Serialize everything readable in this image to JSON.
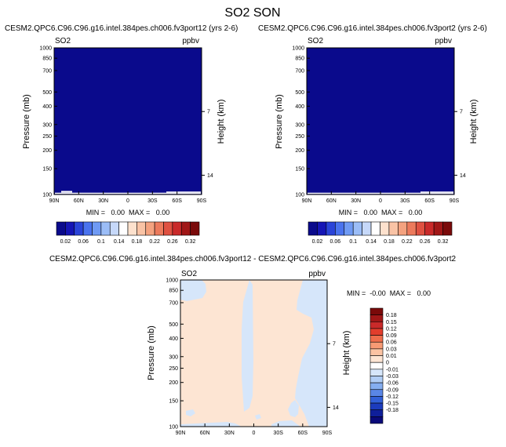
{
  "page_title": "SO2 SON",
  "chart_data": [
    {
      "type": "heatmap",
      "title": "CESM2.QPC6.C96.C96.g16.intel.384pes.ch006.fv3port12 (yrs 2-6)",
      "variable": "SO2",
      "units": "ppbv",
      "xlabel": "",
      "ylabel": "Pressure (mb)",
      "y2label": "Height (km)",
      "x_ticks": [
        "90N",
        "60N",
        "30N",
        "0",
        "30S",
        "60S",
        "90S"
      ],
      "y_ticks": [
        100,
        150,
        200,
        250,
        300,
        400,
        500,
        700,
        850,
        1000
      ],
      "y2_ticks": [
        14,
        7
      ],
      "y_scale": "log",
      "ylim": [
        1000,
        100
      ],
      "stats": "MIN =   0.00  MAX =   0.00",
      "field": "uniform lowest contour level everywhere (all 0.00)",
      "fill_color": "#0a0a8c",
      "colorbar_labels": [
        "0.02",
        "0.06",
        "0.1",
        "0.14",
        "0.18",
        "0.22",
        "0.26",
        "0.32"
      ],
      "colorbar_colors": [
        "#0a0a8c",
        "#1515b5",
        "#2a44d8",
        "#4a73ee",
        "#6f9af4",
        "#9bbdf7",
        "#c6d8f9",
        "#ffffff",
        "#fde1cd",
        "#f9c3a5",
        "#f4a27f",
        "#ec7a5c",
        "#df5141",
        "#c92a2a",
        "#a11717",
        "#7a0a0a"
      ]
    },
    {
      "type": "heatmap",
      "title": "CESM2.QPC6.C96.C96.g16.intel.384pes.ch006.fv3port2 (yrs 2-6)",
      "variable": "SO2",
      "units": "ppbv",
      "xlabel": "",
      "ylabel": "Pressure (mb)",
      "y2label": "Height (km)",
      "x_ticks": [
        "90N",
        "60N",
        "30N",
        "0",
        "30S",
        "60S",
        "90S"
      ],
      "y_ticks": [
        100,
        150,
        200,
        250,
        300,
        400,
        500,
        700,
        850,
        1000
      ],
      "y2_ticks": [
        14,
        7
      ],
      "y_scale": "log",
      "ylim": [
        1000,
        100
      ],
      "stats": "MIN =   0.00  MAX =   0.00",
      "field": "uniform lowest contour level everywhere (all 0.00)",
      "fill_color": "#0a0a8c",
      "colorbar_labels": [
        "0.02",
        "0.06",
        "0.1",
        "0.14",
        "0.18",
        "0.22",
        "0.26",
        "0.32"
      ],
      "colorbar_colors": [
        "#0a0a8c",
        "#1515b5",
        "#2a44d8",
        "#4a73ee",
        "#6f9af4",
        "#9bbdf7",
        "#c6d8f9",
        "#ffffff",
        "#fde1cd",
        "#f9c3a5",
        "#f4a27f",
        "#ec7a5c",
        "#df5141",
        "#c92a2a",
        "#a11717",
        "#7a0a0a"
      ]
    },
    {
      "type": "heatmap",
      "title": "CESM2.QPC6.C96.C96.g16.intel.384pes.ch006.fv3port12 - CESM2.QPC6.C96.C96.g16.intel.384pes.ch006.fv3port2",
      "variable": "SO2",
      "units": "ppbv",
      "xlabel": "",
      "ylabel": "Pressure (mb)",
      "y2label": "Height (km)",
      "x_ticks": [
        "90N",
        "60N",
        "30N",
        "0",
        "30S",
        "60S",
        "90S"
      ],
      "y_ticks": [
        100,
        150,
        200,
        250,
        300,
        400,
        500,
        700,
        850,
        1000
      ],
      "y2_ticks": [
        14,
        7
      ],
      "y_scale": "log",
      "ylim": [
        1000,
        100
      ],
      "stats": "MIN =  -0.00  MAX =   0.00",
      "field": "difference field; regions alternate between slightly negative (-0.01 to 0) and slightly positive (0 to 0.01)",
      "colorbar_labels": [
        "0.18",
        "0.15",
        "0.12",
        "0.09",
        "0.06",
        "0.03",
        "0.01",
        "0",
        "-0.01",
        "-0.03",
        "-0.06",
        "-0.09",
        "-0.12",
        "-0.15",
        "-0.18"
      ],
      "colorbar_colors": [
        "#7a0a0a",
        "#a11717",
        "#c92a2a",
        "#e23d2c",
        "#ef6d4c",
        "#f79a74",
        "#fbc3a3",
        "#fde5d3",
        "#ffffff",
        "#d6e6fa",
        "#b0cdf5",
        "#85aef0",
        "#5a86e6",
        "#3260d8",
        "#1c3cbd",
        "#0f1f9a",
        "#0a0a7a"
      ]
    }
  ]
}
